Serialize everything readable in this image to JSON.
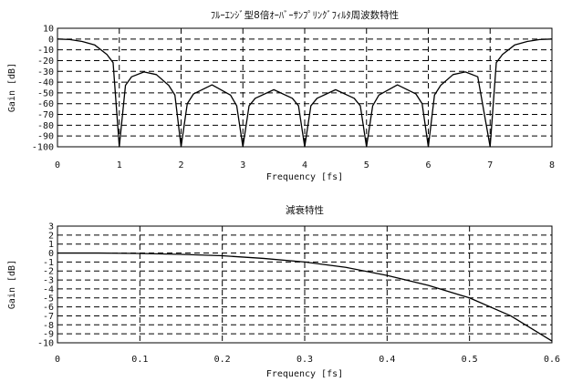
{
  "chart_data": [
    {
      "type": "line",
      "title": "ﾌﾙｰｴﾝｼﾞ型8倍ｵｰﾊﾞｰｻﾝﾌﾟﾘﾝｸﾞﾌｨﾙﾀ周波数特性",
      "xlabel": "Frequency [fs]",
      "ylabel": "Gain [dB]",
      "xlim": [
        0,
        8
      ],
      "ylim": [
        -100,
        10
      ],
      "xticks": [
        0,
        1,
        2,
        3,
        4,
        5,
        6,
        7,
        8
      ],
      "xtick_labels": [
        "0",
        "1",
        "2",
        "3",
        "4",
        "5",
        "6",
        "7",
        "8"
      ],
      "yticks": [
        10,
        0,
        -10,
        -20,
        -30,
        -40,
        -50,
        -60,
        -70,
        -80,
        -90,
        -100
      ],
      "ytick_labels": [
        "10",
        "0",
        "-10",
        "-20",
        "-30",
        "-40",
        "-50",
        "-60",
        "-70",
        "-80",
        "-90",
        "-100"
      ],
      "grid": true,
      "series": [
        {
          "x": [
            0,
            0.2,
            0.4,
            0.6,
            0.8,
            0.9,
            1.0,
            1.1,
            1.2,
            1.4,
            1.6,
            1.8,
            1.9,
            2.0,
            2.1,
            2.2,
            2.5,
            2.8,
            2.9,
            3.0,
            3.1,
            3.2,
            3.5,
            3.8,
            3.9,
            4.0,
            4.1,
            4.2,
            4.5,
            4.8,
            4.9,
            5.0,
            5.1,
            5.2,
            5.5,
            5.8,
            5.9,
            6.0,
            6.1,
            6.2,
            6.4,
            6.6,
            6.8,
            7.0,
            7.1,
            7.2,
            7.4,
            7.6,
            7.8,
            8.0
          ],
          "y": [
            0,
            -0.5,
            -2.3,
            -5.4,
            -14.3,
            -21.9,
            -100,
            -43,
            -35,
            -30.5,
            -33,
            -43,
            -52,
            -100,
            -60,
            -51,
            -42.5,
            -52,
            -62,
            -100,
            -62,
            -55,
            -47,
            -55,
            -62,
            -100,
            -62,
            -55,
            -47,
            -55,
            -62,
            -100,
            -62,
            -52,
            -42.5,
            -51,
            -60,
            -100,
            -52,
            -43,
            -33,
            -30.5,
            -35,
            -100,
            -21.9,
            -14.3,
            -5.4,
            -2.3,
            -0.5,
            0
          ]
        }
      ]
    },
    {
      "type": "line",
      "title": "減衰特性",
      "xlabel": "Frequency [fs]",
      "ylabel": "Gain [dB]",
      "xlim": [
        0,
        0.6
      ],
      "ylim": [
        -10,
        3
      ],
      "xticks": [
        0,
        0.1,
        0.2,
        0.3,
        0.4,
        0.5,
        0.6
      ],
      "xtick_labels": [
        "0",
        "0.1",
        "0.2",
        "0.3",
        "0.4",
        "0.5",
        "0.6"
      ],
      "yticks": [
        3,
        2,
        1,
        0,
        -1,
        -2,
        -3,
        -4,
        -5,
        -6,
        -7,
        -8,
        -9,
        -10
      ],
      "ytick_labels": [
        "3",
        "2",
        "1",
        "0",
        "-1",
        "-2",
        "-3",
        "-4",
        "-5",
        "-6",
        "-7",
        "-8",
        "-9",
        "-10"
      ],
      "grid": true,
      "series": [
        {
          "x": [
            0,
            0.05,
            0.1,
            0.15,
            0.2,
            0.25,
            0.3,
            0.35,
            0.4,
            0.45,
            0.5,
            0.55,
            0.6
          ],
          "y": [
            0,
            0,
            -0.05,
            -0.15,
            -0.3,
            -0.6,
            -1.0,
            -1.6,
            -2.5,
            -3.6,
            -5.0,
            -7.0,
            -9.8
          ]
        }
      ]
    }
  ]
}
